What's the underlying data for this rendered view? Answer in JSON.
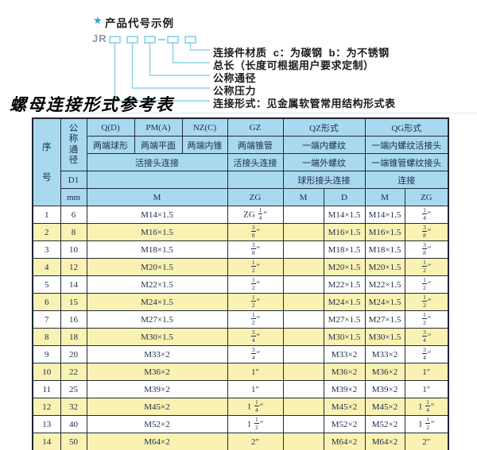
{
  "colors": {
    "header_bg": "#a9d9ee",
    "alt_row_bg": "#faf2b2",
    "connector_cyan": "#8fd4e6",
    "star_blue": "#2ba4d8",
    "table_border": "#232a3a",
    "table_text": "#1b2b4e"
  },
  "diagram": {
    "star_icon": "★",
    "heading": "产品代号示例",
    "prefix": "JR",
    "labels": [
      "连接件材质  c：为碳钢  b：为不锈钢",
      "总长（长度可根据用户要求定制）",
      "公称通径",
      "公称压力",
      "连接形式：见金属软管常用结构形式表"
    ]
  },
  "title": "螺母连接形式参考表",
  "table": {
    "header": {
      "serial": "序号",
      "nominal_diameter": "公称通径",
      "d1": "D1",
      "mm": "mm",
      "q_code": "Q(D)",
      "q_type": "两端球形",
      "pm_code": "PM(A)",
      "pm_type": "两端平面",
      "nz_code": "NZ(C)",
      "nz_type": "两端内锥",
      "gz_code": "GZ",
      "gz_type": "两端锥管",
      "gz_conn": "活接头连接",
      "gz_unit": "ZG",
      "qpmnz_conn": "活接头连接",
      "qpmnz_unit": "M",
      "qz_code": "QZ形式",
      "qz_type1": "一端内螺纹",
      "qz_type2": "一端外螺纹",
      "qz_conn": "球形接头连接",
      "qz_unit1": "M",
      "qz_unit2": "D",
      "qg_code": "QG形式",
      "qg_type1": "一端内螺纹活接头",
      "qg_type2": "一端锥管螺纹接头",
      "qg_conn": "连接",
      "qg_unit1": "M",
      "qg_unit2": "ZG"
    },
    "rows": [
      [
        "1",
        "6",
        "M14×1.5",
        "ZG 1/4″",
        "",
        "M14×1.5",
        "M14×1.5",
        "1/4″"
      ],
      [
        "2",
        "8",
        "M16×1.5",
        "3/8″",
        "",
        "M16×1.5",
        "M16×1.5",
        "3/8″"
      ],
      [
        "3",
        "10",
        "M18×1.5",
        "3/8″",
        "",
        "M18×1.5",
        "M18×1.5",
        "3/8″"
      ],
      [
        "4",
        "12",
        "M20×1.5",
        "1/2″",
        "",
        "M20×1.5",
        "M20×1.5",
        "1/2″"
      ],
      [
        "5",
        "14",
        "M22×1.5",
        "1/2″",
        "",
        "M22×1.5",
        "M22×1.5",
        "1/2″"
      ],
      [
        "6",
        "15",
        "M24×1.5",
        "1/2″",
        "",
        "M24×1.5",
        "M24×1.5",
        "1/2″"
      ],
      [
        "7",
        "16",
        "M27×1.5",
        "1/2″",
        "",
        "M27×1.5",
        "M27×1.5",
        "1/2″"
      ],
      [
        "8",
        "18",
        "M30×1.5",
        "3/4″",
        "",
        "M30×1.5",
        "M30×1.5",
        "3/4″"
      ],
      [
        "9",
        "20",
        "M33×2",
        "3/4″",
        "",
        "M33×2",
        "M33×2",
        "3/4″"
      ],
      [
        "10",
        "22",
        "M36×2",
        "1″",
        "",
        "M36×2",
        "M36×2",
        "1″"
      ],
      [
        "11",
        "25",
        "M39×2",
        "1″",
        "",
        "M39×2",
        "M39×2",
        "1″"
      ],
      [
        "12",
        "32",
        "M45×2",
        "1 1/4″",
        "",
        "M45×2",
        "M45×2",
        "1 1/4″"
      ],
      [
        "13",
        "40",
        "M52×2",
        "1 1/2″",
        "",
        "M52×2",
        "M52×2",
        "1 1/2″"
      ],
      [
        "14",
        "50",
        "M64×2",
        "2″",
        "",
        "M64×2",
        "M64×2",
        "2″"
      ]
    ]
  }
}
